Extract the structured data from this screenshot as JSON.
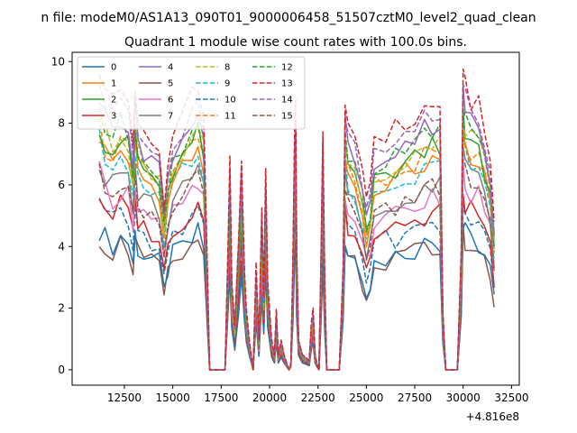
{
  "chart_data": {
    "type": "line",
    "suptitle": "n file: modeM0/AS1A13_090T01_9000006458_51507cztM0_level2_quad_clean",
    "title": "Quadrant 1 module wise count rates with 100.0s bins.",
    "xlabel": "",
    "ylabel": "",
    "x_offset_text": "+4.816e8",
    "xlim": [
      9800,
      32900
    ],
    "ylim": [
      -0.5,
      10.3
    ],
    "x_ticks": [
      12500,
      15000,
      17500,
      20000,
      22500,
      25000,
      27500,
      30000,
      32500
    ],
    "x_tick_labels": [
      "12500",
      "15000",
      "17500",
      "20000",
      "22500",
      "25000",
      "27500",
      "30000",
      "32500"
    ],
    "y_ticks": [
      0,
      2,
      4,
      6,
      8,
      10
    ],
    "y_tick_labels": [
      "0",
      "2",
      "4",
      "6",
      "8",
      "10"
    ],
    "grid": false,
    "legend_position": "upper-left",
    "legend_columns": 4,
    "series": [
      {
        "name": "0",
        "color": "#1f77b4",
        "dash": "solid",
        "base": 3.8
      },
      {
        "name": "1",
        "color": "#ff7f0e",
        "dash": "solid",
        "base": 6.3
      },
      {
        "name": "2",
        "color": "#2ca02c",
        "dash": "solid",
        "base": 6.6
      },
      {
        "name": "3",
        "color": "#d62728",
        "dash": "solid",
        "base": 4.7
      },
      {
        "name": "4",
        "color": "#9467bd",
        "dash": "solid",
        "base": 7.3
      },
      {
        "name": "5",
        "color": "#8c564b",
        "dash": "solid",
        "base": 3.6
      },
      {
        "name": "6",
        "color": "#e377c2",
        "dash": "solid",
        "base": 5.2
      },
      {
        "name": "7",
        "color": "#7f7f7f",
        "dash": "solid",
        "base": 5.6
      },
      {
        "name": "8",
        "color": "#bcbd22",
        "dash": "dashed",
        "base": 6.8
      },
      {
        "name": "9",
        "color": "#17becf",
        "dash": "dashed",
        "base": 6.1
      },
      {
        "name": "10",
        "color": "#1f77b4",
        "dash": "dashed",
        "base": 4.4
      },
      {
        "name": "11",
        "color": "#ff7f0e",
        "dash": "dashed",
        "base": 6.5
      },
      {
        "name": "12",
        "color": "#2ca02c",
        "dash": "dashed",
        "base": 7.0
      },
      {
        "name": "13",
        "color": "#d62728",
        "dash": "dashed",
        "base": 8.0
      },
      {
        "name": "14",
        "color": "#9467bd",
        "dash": "dashed",
        "base": 7.6
      },
      {
        "name": "15",
        "color": "#8c564b",
        "dash": "dashed",
        "base": 5.4
      }
    ],
    "envelope": {
      "x": [
        11200,
        11500,
        11900,
        12300,
        12700,
        12950,
        13050,
        13200,
        13500,
        13900,
        14300,
        14550,
        14750,
        15000,
        15500,
        16000,
        16300,
        16600,
        16800,
        16900,
        17200,
        17500,
        17700,
        17850,
        17950,
        18050,
        18200,
        18400,
        18550,
        18700,
        18800,
        18950,
        19150,
        19300,
        19450,
        19600,
        19700,
        19800,
        19900,
        20100,
        20250,
        20350,
        20450,
        20600,
        20750,
        20900,
        21000,
        21100,
        21200,
        21300,
        21350,
        21400,
        21500,
        21700,
        21900,
        22050,
        22150,
        22250,
        22350,
        22450,
        22550,
        22650,
        22750,
        22850,
        22950,
        23100,
        23300,
        23600,
        23800,
        23900,
        24050,
        24400,
        24800,
        25000,
        25200,
        25400,
        26000,
        26500,
        27000,
        27500,
        28000,
        28400,
        28800,
        28950,
        29100,
        29400,
        29700,
        29900,
        30000,
        30100,
        30400,
        30800,
        31100,
        31400,
        31600
      ],
      "y": [
        1.0,
        0.92,
        0.88,
        0.93,
        0.9,
        0.75,
        0.95,
        0.85,
        0.8,
        0.78,
        0.75,
        0.55,
        0.7,
        0.8,
        0.85,
        0.9,
        0.95,
        0.85,
        0.3,
        0.0,
        0.0,
        0.0,
        0.0,
        0.4,
        0.7,
        0.3,
        0.15,
        0.45,
        0.7,
        0.35,
        0.2,
        0.1,
        0.0,
        0.35,
        0.1,
        0.55,
        0.25,
        0.7,
        0.3,
        0.1,
        0.05,
        0.2,
        0.05,
        0.1,
        0.05,
        0.02,
        0.0,
        0.02,
        0.35,
        0.85,
        0.9,
        0.4,
        0.1,
        0.05,
        0.04,
        0.03,
        0.15,
        0.2,
        0.05,
        0.02,
        0.0,
        0.35,
        0.8,
        0.3,
        0.0,
        0.0,
        0.0,
        0.0,
        0.35,
        0.9,
        0.82,
        0.78,
        0.65,
        0.55,
        0.6,
        0.75,
        0.78,
        0.8,
        0.83,
        0.85,
        0.88,
        0.9,
        0.9,
        0.2,
        0.0,
        0.0,
        0.0,
        0.4,
        1.0,
        0.95,
        0.9,
        0.88,
        0.8,
        0.7,
        0.5
      ]
    }
  }
}
